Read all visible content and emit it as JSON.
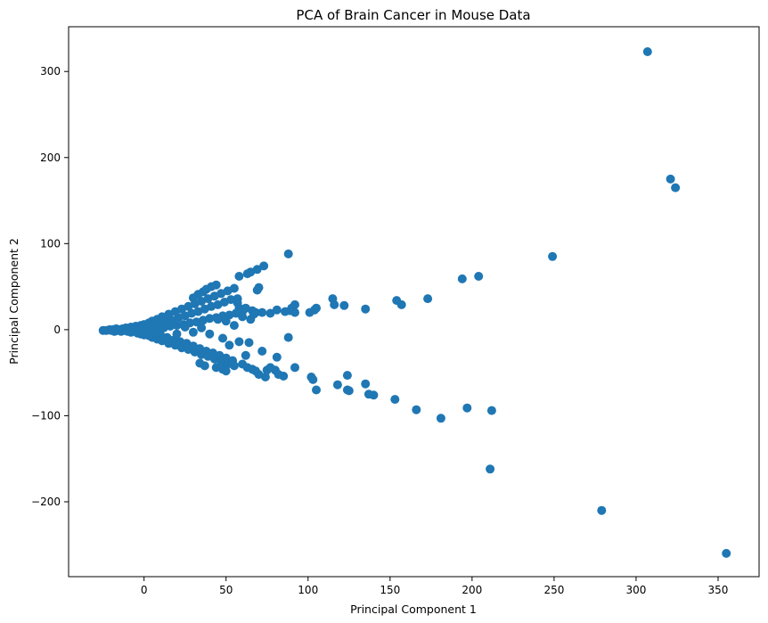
{
  "chart_data": {
    "type": "scatter",
    "title": "PCA of Brain Cancer in Mouse Data",
    "xlabel": "Principal Component 1",
    "ylabel": "Principal Component 2",
    "xlim": [
      -46,
      375
    ],
    "ylim": [
      -287,
      352
    ],
    "xticks": [
      0,
      50,
      100,
      150,
      200,
      250,
      300,
      350
    ],
    "xtick_labels": [
      "0",
      "50",
      "100",
      "150",
      "200",
      "250",
      "300",
      "350"
    ],
    "yticks": [
      -200,
      -100,
      0,
      100,
      200,
      300
    ],
    "ytick_labels": [
      "−200",
      "−100",
      "0",
      "100",
      "200",
      "300"
    ],
    "grid": false,
    "point_color": "#1f77b4",
    "points": [
      [
        307,
        323
      ],
      [
        321,
        175
      ],
      [
        324,
        165
      ],
      [
        249,
        85
      ],
      [
        204,
        62
      ],
      [
        194,
        59
      ],
      [
        173,
        36
      ],
      [
        157,
        29
      ],
      [
        154,
        34
      ],
      [
        135,
        24
      ],
      [
        122,
        28
      ],
      [
        116,
        29
      ],
      [
        115,
        36
      ],
      [
        105,
        25
      ],
      [
        104,
        23
      ],
      [
        101,
        20
      ],
      [
        92,
        29
      ],
      [
        90,
        25
      ],
      [
        88,
        88
      ],
      [
        89,
        22
      ],
      [
        92,
        20
      ],
      [
        88,
        -9
      ],
      [
        92,
        -44
      ],
      [
        85,
        -54
      ],
      [
        81,
        -32
      ],
      [
        80,
        -47
      ],
      [
        82,
        -52
      ],
      [
        102,
        -55
      ],
      [
        103,
        -58
      ],
      [
        105,
        -70
      ],
      [
        118,
        -64
      ],
      [
        124,
        -53
      ],
      [
        124,
        -70
      ],
      [
        125,
        -71
      ],
      [
        135,
        -63
      ],
      [
        137,
        -75
      ],
      [
        140,
        -76
      ],
      [
        153,
        -81
      ],
      [
        166,
        -93
      ],
      [
        181,
        -103
      ],
      [
        197,
        -91
      ],
      [
        212,
        -94
      ],
      [
        211,
        -162
      ],
      [
        279,
        -210
      ],
      [
        355,
        -260
      ],
      [
        73,
        74
      ],
      [
        69,
        70
      ],
      [
        65,
        67
      ],
      [
        70,
        49
      ],
      [
        69,
        46
      ],
      [
        63,
        65
      ],
      [
        58,
        62
      ],
      [
        57,
        36
      ],
      [
        57,
        31
      ],
      [
        58,
        25
      ],
      [
        60,
        21
      ],
      [
        58,
        -14
      ],
      [
        64,
        -15
      ],
      [
        62,
        -30
      ],
      [
        72,
        -25
      ],
      [
        75,
        -47
      ],
      [
        70,
        -52
      ],
      [
        74,
        -55
      ],
      [
        77,
        -44
      ],
      [
        86,
        21
      ],
      [
        81,
        23
      ],
      [
        77,
        19
      ],
      [
        72,
        20
      ],
      [
        67,
        18
      ],
      [
        -25,
        -1
      ],
      [
        -23,
        -1
      ],
      [
        -21,
        0
      ],
      [
        -20,
        -1
      ],
      [
        -19,
        0
      ],
      [
        -18,
        -2
      ],
      [
        -17,
        1
      ],
      [
        -16,
        -1
      ],
      [
        -15,
        0
      ],
      [
        -14,
        -2
      ],
      [
        -13,
        1
      ],
      [
        -12,
        -1
      ],
      [
        -11,
        2
      ],
      [
        -10,
        -2
      ],
      [
        -9,
        0
      ],
      [
        -8,
        3
      ],
      [
        -8,
        -3
      ],
      [
        -7,
        1
      ],
      [
        -6,
        -2
      ],
      [
        -5,
        4
      ],
      [
        -4,
        -4
      ],
      [
        -3,
        2
      ],
      [
        -2,
        5
      ],
      [
        -2,
        -5
      ],
      [
        -1,
        0
      ],
      [
        0,
        6
      ],
      [
        0,
        -6
      ],
      [
        1,
        3
      ],
      [
        2,
        -3
      ],
      [
        3,
        8
      ],
      [
        3,
        -7
      ],
      [
        4,
        1
      ],
      [
        5,
        10
      ],
      [
        5,
        -9
      ],
      [
        6,
        4
      ],
      [
        7,
        -4
      ],
      [
        8,
        12
      ],
      [
        8,
        -11
      ],
      [
        9,
        6
      ],
      [
        10,
        -6
      ],
      [
        11,
        15
      ],
      [
        11,
        -13
      ],
      [
        12,
        2
      ],
      [
        13,
        9
      ],
      [
        14,
        -9
      ],
      [
        15,
        18
      ],
      [
        15,
        -16
      ],
      [
        16,
        4
      ],
      [
        17,
        11
      ],
      [
        18,
        -12
      ],
      [
        19,
        21
      ],
      [
        19,
        -18
      ],
      [
        20,
        5
      ],
      [
        21,
        14
      ],
      [
        22,
        -14
      ],
      [
        23,
        24
      ],
      [
        23,
        -21
      ],
      [
        24,
        6
      ],
      [
        25,
        16
      ],
      [
        26,
        -16
      ],
      [
        27,
        27
      ],
      [
        27,
        -23
      ],
      [
        28,
        8
      ],
      [
        29,
        19
      ],
      [
        30,
        -19
      ],
      [
        31,
        30
      ],
      [
        31,
        -26
      ],
      [
        32,
        9
      ],
      [
        33,
        21
      ],
      [
        34,
        -22
      ],
      [
        35,
        33
      ],
      [
        35,
        -29
      ],
      [
        36,
        11
      ],
      [
        37,
        24
      ],
      [
        38,
        -25
      ],
      [
        39,
        36
      ],
      [
        39,
        -31
      ],
      [
        40,
        13
      ],
      [
        41,
        27
      ],
      [
        42,
        -27
      ],
      [
        43,
        39
      ],
      [
        43,
        -34
      ],
      [
        44,
        14
      ],
      [
        45,
        29
      ],
      [
        46,
        -30
      ],
      [
        47,
        42
      ],
      [
        47,
        -37
      ],
      [
        48,
        16
      ],
      [
        49,
        32
      ],
      [
        50,
        -33
      ],
      [
        51,
        45
      ],
      [
        51,
        -40
      ],
      [
        52,
        17
      ],
      [
        53,
        35
      ],
      [
        54,
        -36
      ],
      [
        55,
        48
      ],
      [
        55,
        -42
      ],
      [
        56,
        19
      ],
      [
        45,
        12
      ],
      [
        40,
        -5
      ],
      [
        35,
        2
      ],
      [
        30,
        -3
      ],
      [
        25,
        3
      ],
      [
        20,
        -5
      ],
      [
        15,
        7
      ],
      [
        10,
        3
      ],
      [
        50,
        10
      ],
      [
        55,
        5
      ],
      [
        60,
        15
      ],
      [
        65,
        12
      ],
      [
        48,
        -10
      ],
      [
        52,
        -18
      ],
      [
        44,
        52
      ],
      [
        41,
        50
      ],
      [
        38,
        47
      ],
      [
        36,
        44
      ],
      [
        33,
        41
      ],
      [
        30,
        37
      ],
      [
        60,
        -40
      ],
      [
        63,
        -44
      ],
      [
        66,
        -46
      ],
      [
        68,
        -48
      ],
      [
        44,
        -44
      ],
      [
        48,
        -46
      ],
      [
        50,
        -48
      ],
      [
        37,
        -42
      ],
      [
        34,
        -39
      ],
      [
        62,
        25
      ],
      [
        66,
        22
      ],
      [
        68,
        20
      ]
    ]
  }
}
